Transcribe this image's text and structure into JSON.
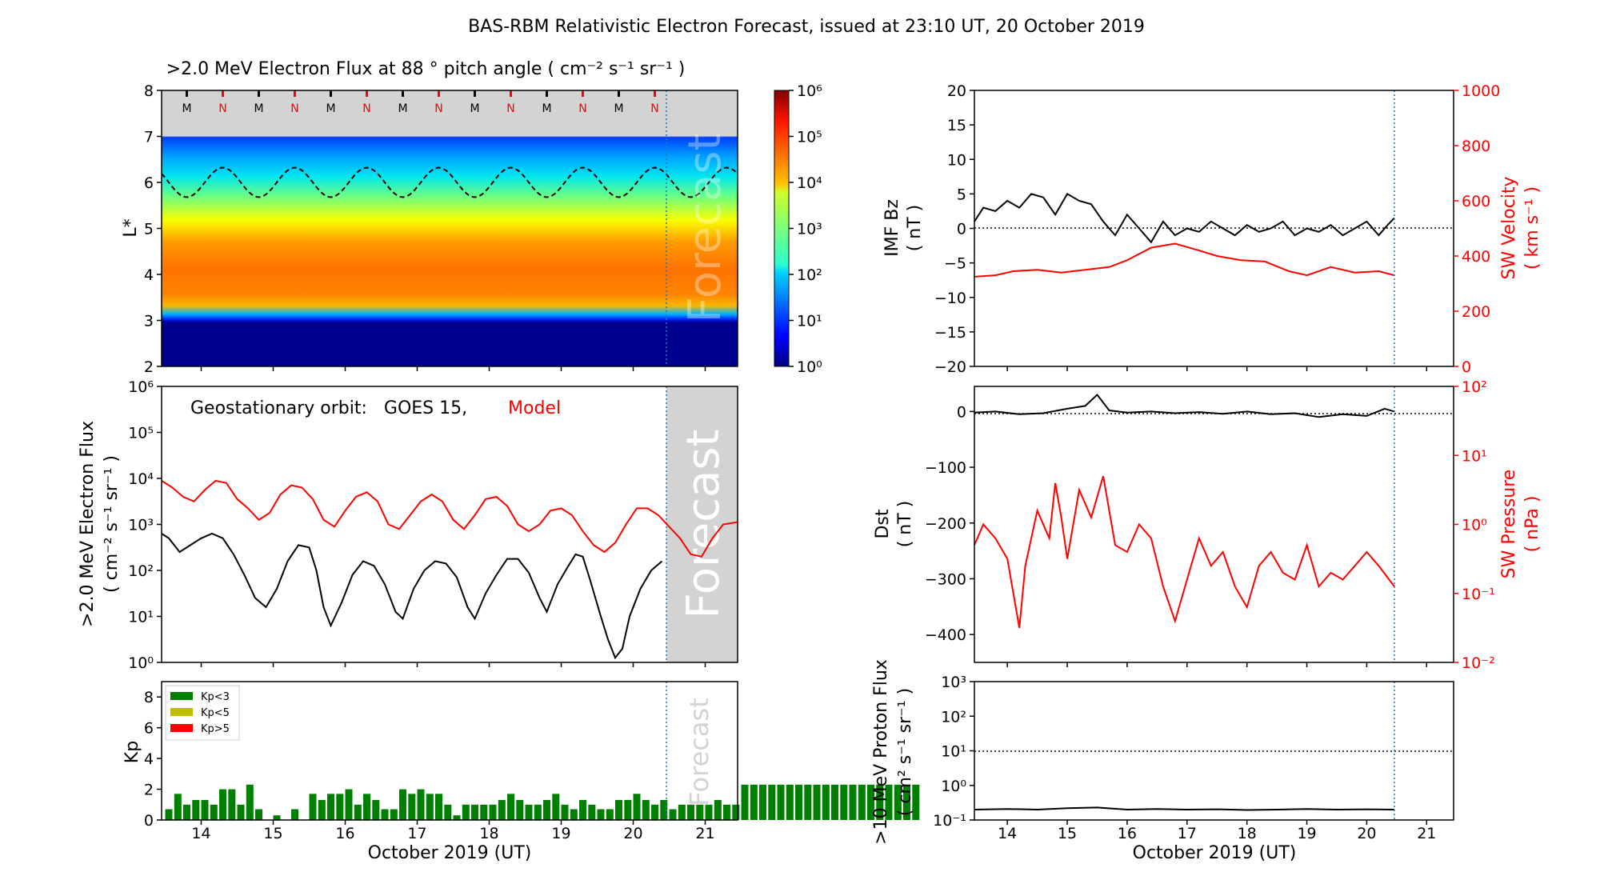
{
  "figure": {
    "title": "BAS-RBM Relativistic Electron Forecast, issued at 23:10 UT, 20 October 2019",
    "time_axis_label": "October 2019 (UT)",
    "day_ticks": [
      "14",
      "15",
      "16",
      "17",
      "18",
      "19",
      "20",
      "21"
    ],
    "forecast_label": "Forecast"
  },
  "chart_data": [
    {
      "id": "electron-flux-map",
      "type": "heatmap",
      "title": ">2.0 MeV Electron Flux at 88 ° pitch angle ( cm⁻² s⁻¹ sr⁻¹ )",
      "ylabel": "L*",
      "x_range_days": [
        13.45,
        21.45
      ],
      "ylim": [
        2,
        8
      ],
      "y_ticks": [
        "2",
        "3",
        "4",
        "5",
        "6",
        "7",
        "8"
      ],
      "colorbar": {
        "ticks": [
          "10⁰",
          "10¹",
          "10²",
          "10³",
          "10⁴",
          "10⁵",
          "10⁶"
        ],
        "range_log10": [
          0,
          6
        ]
      },
      "orbit_markers": [
        "M",
        "N",
        "M",
        "N",
        "M",
        "N",
        "M",
        "N",
        "M",
        "N",
        "M",
        "N",
        "M",
        "N"
      ],
      "forecast_start_day": 20.46,
      "colors": {
        "model": "#ff0000",
        "black": "#000000",
        "forecast_bg": "#d3d3d3",
        "dotted": "#1f77b4"
      }
    },
    {
      "id": "geo-flux",
      "type": "line",
      "annotation": "Geostationary orbit:   GOES 15,",
      "annotation_model": "Model",
      "ylabel": ">2.0 MeV Electron Flux",
      "ylabel_units": "( cm⁻² s⁻¹ sr⁻¹ )",
      "ylim_log10": [
        0,
        6
      ],
      "y_ticks": [
        "10⁰",
        "10¹",
        "10²",
        "10³",
        "10⁴",
        "10⁵",
        "10⁶"
      ],
      "series": [
        {
          "name": "Model",
          "color": "#ff0000",
          "x": [
            13.45,
            13.6,
            13.75,
            13.9,
            14.05,
            14.2,
            14.35,
            14.5,
            14.65,
            14.8,
            14.95,
            15.1,
            15.25,
            15.4,
            15.55,
            15.7,
            15.85,
            16.0,
            16.15,
            16.3,
            16.45,
            16.6,
            16.75,
            16.9,
            17.05,
            17.2,
            17.35,
            17.5,
            17.65,
            17.8,
            17.95,
            18.1,
            18.25,
            18.4,
            18.55,
            18.7,
            18.85,
            19.0,
            19.15,
            19.3,
            19.45,
            19.6,
            19.75,
            19.9,
            20.05,
            20.2,
            20.35,
            20.5,
            20.65,
            20.8,
            20.95,
            21.1,
            21.25,
            21.45
          ],
          "log10_values": [
            3.95,
            3.8,
            3.6,
            3.5,
            3.75,
            3.95,
            3.9,
            3.55,
            3.35,
            3.1,
            3.25,
            3.65,
            3.85,
            3.8,
            3.55,
            3.1,
            2.95,
            3.3,
            3.6,
            3.7,
            3.5,
            3.0,
            2.9,
            3.2,
            3.5,
            3.65,
            3.5,
            3.1,
            2.9,
            3.2,
            3.55,
            3.6,
            3.4,
            3.0,
            2.85,
            3.0,
            3.3,
            3.35,
            3.2,
            2.85,
            2.55,
            2.4,
            2.6,
            3.0,
            3.35,
            3.35,
            3.2,
            2.95,
            2.7,
            2.35,
            2.3,
            2.7,
            3.0,
            3.05
          ]
        },
        {
          "name": "GOES 15",
          "color": "#000000",
          "x": [
            13.45,
            13.55,
            13.7,
            13.85,
            14.0,
            14.15,
            14.3,
            14.45,
            14.6,
            14.75,
            14.9,
            15.05,
            15.2,
            15.35,
            15.5,
            15.6,
            15.7,
            15.8,
            15.95,
            16.1,
            16.25,
            16.4,
            16.55,
            16.7,
            16.8,
            16.95,
            17.1,
            17.25,
            17.4,
            17.55,
            17.7,
            17.8,
            17.95,
            18.1,
            18.25,
            18.4,
            18.55,
            18.7,
            18.8,
            18.95,
            19.1,
            19.2,
            19.3,
            19.4,
            19.55,
            19.65,
            19.75,
            19.85,
            19.95,
            20.1,
            20.25,
            20.4
          ],
          "log10_values": [
            2.8,
            2.7,
            2.4,
            2.55,
            2.7,
            2.8,
            2.7,
            2.35,
            1.9,
            1.4,
            1.2,
            1.6,
            2.2,
            2.55,
            2.5,
            2.0,
            1.2,
            0.8,
            1.3,
            1.9,
            2.2,
            2.1,
            1.7,
            1.1,
            0.95,
            1.6,
            2.0,
            2.2,
            2.15,
            1.85,
            1.2,
            0.95,
            1.5,
            1.9,
            2.25,
            2.25,
            1.95,
            1.4,
            1.1,
            1.7,
            2.1,
            2.35,
            2.3,
            1.8,
            1.0,
            0.5,
            0.1,
            0.3,
            1.0,
            1.6,
            2.0,
            2.2
          ]
        }
      ]
    },
    {
      "id": "kp-index",
      "type": "bar",
      "ylabel": "Kp",
      "ylim": [
        0,
        9
      ],
      "y_ticks": [
        "0",
        "2",
        "4",
        "6",
        "8"
      ],
      "legend": [
        {
          "label": "Kp<3",
          "color": "#008000"
        },
        {
          "label": "Kp<5",
          "color": "#bfbf00"
        },
        {
          "label": "Kp>5",
          "color": "#ff0000"
        }
      ],
      "bar_width_days": 0.125,
      "x_start_days": 13.5,
      "values": [
        0.7,
        1.7,
        1.0,
        1.3,
        1.3,
        1.0,
        2.0,
        2.0,
        1.0,
        2.3,
        0.7,
        0,
        0.3,
        0,
        0.7,
        0,
        1.7,
        1.3,
        1.7,
        1.7,
        2.0,
        1.0,
        1.7,
        1.3,
        0.7,
        0.7,
        2.0,
        1.7,
        2.0,
        1.7,
        1.7,
        1.0,
        0.3,
        1.0,
        1.0,
        1.0,
        1.0,
        1.3,
        1.7,
        1.3,
        1.0,
        1.0,
        1.3,
        1.7,
        1.0,
        0.7,
        1.3,
        1.0,
        0.7,
        0.7,
        1.3,
        1.3,
        1.7,
        1.3,
        1.0,
        1.3,
        0.7,
        1.0,
        1.0,
        1.0,
        1.0,
        1.3,
        1.0,
        1.0,
        2.3,
        2.3,
        2.3,
        2.3,
        2.3,
        2.3,
        2.3,
        2.3,
        2.3,
        2.3,
        2.3,
        2.3,
        2.3,
        2.3,
        2.3,
        2.3,
        2.3,
        2.3,
        2.3,
        2.3
      ]
    },
    {
      "id": "imf-bz-sw-velocity",
      "type": "line",
      "ylabel_left": "IMF Bz",
      "ylabel_left_units": "( nT )",
      "ylim_left": [
        -20,
        20
      ],
      "y_ticks_left": [
        "−20",
        "−15",
        "−10",
        "−5",
        "0",
        "5",
        "10",
        "15",
        "20"
      ],
      "ylabel_right": "SW Velocity",
      "ylabel_right_units": "( km s⁻¹ )",
      "ylim_right": [
        0,
        1000
      ],
      "y_ticks_right": [
        "0",
        "200",
        "400",
        "600",
        "800",
        "1000"
      ],
      "series": [
        {
          "name": "IMF Bz",
          "color": "#000000",
          "x": [
            13.45,
            13.6,
            13.8,
            14.0,
            14.2,
            14.4,
            14.6,
            14.8,
            15.0,
            15.2,
            15.4,
            15.6,
            15.8,
            16.0,
            16.2,
            16.4,
            16.6,
            16.8,
            17.0,
            17.2,
            17.4,
            17.6,
            17.8,
            18.0,
            18.2,
            18.4,
            18.6,
            18.8,
            19.0,
            19.2,
            19.4,
            19.6,
            19.8,
            20.0,
            20.2,
            20.35,
            20.46
          ],
          "values": [
            1,
            3,
            2.5,
            4,
            3,
            5,
            4.5,
            2,
            5,
            4,
            3.5,
            1,
            -1,
            2,
            0,
            -2,
            1,
            -1,
            0,
            -0.5,
            1,
            0,
            -1,
            0.5,
            -0.5,
            0,
            1,
            -1,
            0,
            -0.5,
            0.5,
            -1,
            0,
            1,
            -1,
            0.5,
            1.5
          ]
        },
        {
          "name": "SW Velocity",
          "color": "#ff0000",
          "x": [
            13.45,
            13.8,
            14.1,
            14.5,
            14.9,
            15.3,
            15.7,
            16.0,
            16.4,
            16.8,
            17.2,
            17.5,
            17.9,
            18.3,
            18.7,
            19.0,
            19.4,
            19.8,
            20.2,
            20.46
          ],
          "values": [
            325,
            330,
            345,
            350,
            340,
            350,
            360,
            385,
            430,
            445,
            420,
            400,
            385,
            380,
            345,
            330,
            360,
            340,
            345,
            330
          ]
        }
      ]
    },
    {
      "id": "dst-sw-pressure",
      "type": "line",
      "ylabel_left": "Dst",
      "ylabel_left_units": "( nT )",
      "ylim_left": [
        -450,
        45
      ],
      "y_ticks_left": [
        "−400",
        "−300",
        "−200",
        "−100",
        "0"
      ],
      "ylabel_right": "SW Pressure",
      "ylabel_right_units": "( nPa )",
      "ylim_right_log10": [
        -2,
        2
      ],
      "y_ticks_right": [
        "10⁻²",
        "10⁻¹",
        "10⁰",
        "10¹",
        "10²"
      ],
      "series": [
        {
          "name": "Dst",
          "color": "#000000",
          "x": [
            13.45,
            13.8,
            14.2,
            14.6,
            15.0,
            15.3,
            15.5,
            15.7,
            16.0,
            16.4,
            16.8,
            17.2,
            17.6,
            18.0,
            18.4,
            18.8,
            19.2,
            19.6,
            20.0,
            20.3,
            20.46
          ],
          "values": [
            -2,
            0,
            -5,
            -3,
            5,
            10,
            30,
            2,
            -2,
            0,
            -3,
            -1,
            -4,
            0,
            -5,
            -3,
            -10,
            -5,
            -8,
            5,
            0
          ]
        },
        {
          "name": "SW Pressure",
          "color": "#ff0000",
          "x": [
            13.45,
            13.6,
            13.8,
            14.0,
            14.1,
            14.2,
            14.3,
            14.5,
            14.7,
            14.8,
            14.9,
            15.0,
            15.2,
            15.4,
            15.6,
            15.8,
            16.0,
            16.2,
            16.4,
            16.6,
            16.8,
            17.0,
            17.2,
            17.4,
            17.6,
            17.8,
            18.0,
            18.2,
            18.4,
            18.6,
            18.8,
            19.0,
            19.2,
            19.4,
            19.6,
            19.8,
            20.0,
            20.2,
            20.46
          ],
          "log10_values": [
            -0.3,
            0,
            -0.2,
            -0.5,
            -1,
            -1.5,
            -0.6,
            0.2,
            -0.2,
            0.6,
            0.1,
            -0.5,
            0.5,
            0.1,
            0.7,
            -0.3,
            -0.4,
            0,
            -0.2,
            -0.9,
            -1.4,
            -0.8,
            -0.2,
            -0.6,
            -0.4,
            -0.9,
            -1.2,
            -0.6,
            -0.4,
            -0.7,
            -0.8,
            -0.3,
            -0.9,
            -0.7,
            -0.8,
            -0.6,
            -0.4,
            -0.6,
            -0.9
          ]
        }
      ]
    },
    {
      "id": "proton-flux",
      "type": "line",
      "ylabel": ">10 MeV Proton Flux",
      "ylabel_units": "( cm² s⁻¹ sr⁻¹ )",
      "ylim_log10": [
        -1,
        3
      ],
      "y_ticks": [
        "10⁻¹",
        "10⁰",
        "10¹",
        "10²",
        "10³"
      ],
      "threshold_log10": 1,
      "series": [
        {
          "name": "Proton Flux",
          "color": "#000000",
          "x": [
            13.45,
            14.0,
            14.5,
            15.0,
            15.5,
            16.0,
            16.5,
            17.0,
            17.5,
            18.0,
            18.5,
            19.0,
            19.5,
            20.0,
            20.46
          ],
          "log10_values": [
            -0.7,
            -0.68,
            -0.7,
            -0.66,
            -0.64,
            -0.7,
            -0.68,
            -0.7,
            -0.69,
            -0.71,
            -0.7,
            -0.68,
            -0.7,
            -0.69,
            -0.7
          ]
        }
      ]
    }
  ]
}
